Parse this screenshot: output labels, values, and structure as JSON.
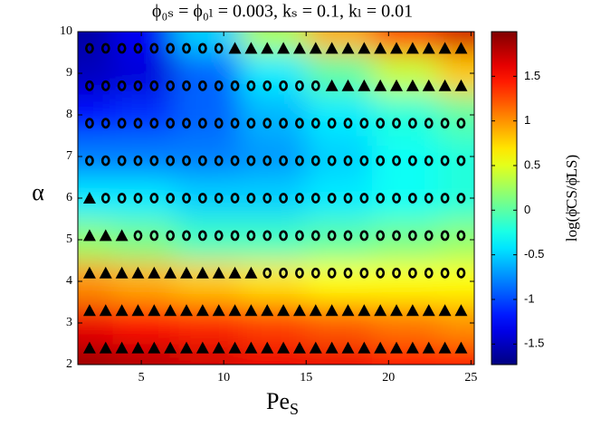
{
  "chart_data": {
    "type": "contour-scatter",
    "title": "ϕ₀ₛ = ϕ₀ₗ = 0.003, kₛ = 0.1, kₗ = 0.01",
    "x_label": "Pe",
    "x_label_subscript": "S",
    "y_label": "α",
    "colorbar_label": "log(ϕ̄CS/ϕ̄LS)",
    "colormap": "jet",
    "xlim": [
      1.15,
      25.2
    ],
    "ylim": [
      2,
      10
    ],
    "xticks": [
      5,
      10,
      15,
      20,
      25
    ],
    "yticks": [
      2,
      3,
      4,
      5,
      6,
      7,
      8,
      9,
      10
    ],
    "clim": [
      -1.73,
      2.0
    ],
    "cticks": [
      -1.5,
      -1,
      -0.5,
      0,
      0.5,
      1,
      1.5
    ],
    "field": {
      "x": [
        1.5,
        5,
        9,
        13,
        17,
        21,
        25
      ],
      "y": [
        2,
        3,
        4,
        5,
        6,
        7,
        8,
        9,
        10
      ],
      "z": [
        [
          1.9,
          1.8,
          1.7,
          1.6,
          1.6,
          1.5,
          1.5
        ],
        [
          1.6,
          1.5,
          1.4,
          1.3,
          1.2,
          1.1,
          1.0
        ],
        [
          1.0,
          0.9,
          0.8,
          0.7,
          0.6,
          0.6,
          0.6
        ],
        [
          0.2,
          0.1,
          -0.1,
          -0.1,
          0.0,
          0.1,
          0.2
        ],
        [
          -0.4,
          -0.4,
          -0.5,
          -0.5,
          -0.4,
          -0.3,
          -0.2
        ],
        [
          -0.8,
          -0.8,
          -0.8,
          -0.7,
          -0.5,
          -0.3,
          -0.2
        ],
        [
          -1.2,
          -1.1,
          -0.9,
          -0.6,
          -0.4,
          -0.2,
          0.0
        ],
        [
          -1.5,
          -1.4,
          -0.9,
          -0.4,
          0.0,
          0.4,
          0.8
        ],
        [
          -1.6,
          -1.3,
          -0.5,
          0.3,
          0.9,
          1.3,
          1.7
        ]
      ]
    },
    "marker_x": [
      1.86,
      2.84,
      3.82,
      4.8,
      5.78,
      6.76,
      7.74,
      8.72,
      9.7,
      10.68,
      11.66,
      12.64,
      13.62,
      14.6,
      15.58,
      16.56,
      17.54,
      18.52,
      19.5,
      20.48,
      21.46,
      22.44,
      23.42,
      24.4
    ],
    "rows": [
      {
        "y": 2.4,
        "markers": "tttttttttttttttttttttttt"
      },
      {
        "y": 3.3,
        "markers": "tttttttttttttttttttttttt"
      },
      {
        "y": 4.2,
        "markers": "tttttttttttooooooooooooo"
      },
      {
        "y": 5.1,
        "markers": "tttooooooooooooooooooooo"
      },
      {
        "y": 6.0,
        "markers": "tooooooooooooooooooooooo"
      },
      {
        "y": 6.9,
        "markers": "oooooooooooooooooooooooo"
      },
      {
        "y": 7.8,
        "markers": "oooooooooooooooooooooooo"
      },
      {
        "y": 8.7,
        "markers": "ooooooooooooooottttttttt"
      },
      {
        "y": 9.6,
        "markers": "ooooooooottttttttttttttt"
      }
    ]
  }
}
